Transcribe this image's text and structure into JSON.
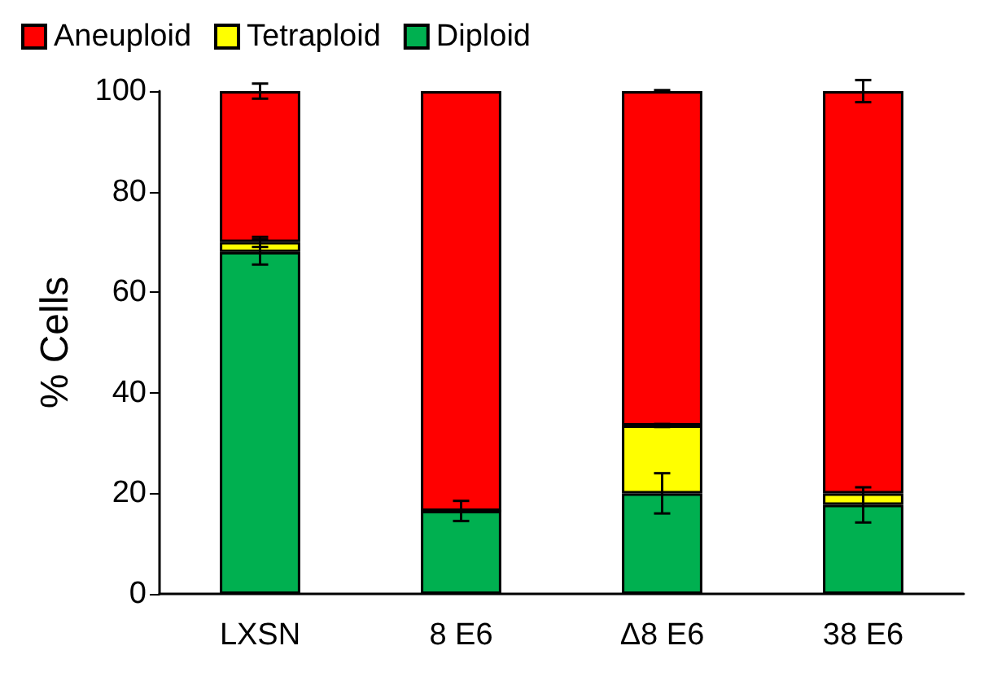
{
  "chart_data": {
    "type": "bar",
    "stacked": true,
    "ylabel": "% Cells",
    "categories": [
      "LXSN",
      "8 E6",
      "Δ8 E6",
      "38 E6"
    ],
    "series": [
      {
        "name": "Diploid",
        "color": "#00b050",
        "values": [
          68,
          16.5,
          20,
          17.7
        ],
        "errors": [
          2.5,
          2,
          4,
          3.5
        ]
      },
      {
        "name": "Tetraploid",
        "color": "#ffff00",
        "values": [
          2,
          0,
          13.5,
          2.3
        ],
        "errors": [
          1,
          null,
          0.3,
          null
        ]
      },
      {
        "name": "Aneuploid",
        "color": "#ff0000",
        "values": [
          30,
          83.5,
          66.5,
          80
        ],
        "errors": [
          1.5,
          null,
          0.2,
          2.2
        ]
      }
    ],
    "ylim": [
      0,
      100
    ],
    "yticks": [
      0,
      20,
      40,
      60,
      80,
      100
    ],
    "grid": false,
    "legend": "top left"
  }
}
